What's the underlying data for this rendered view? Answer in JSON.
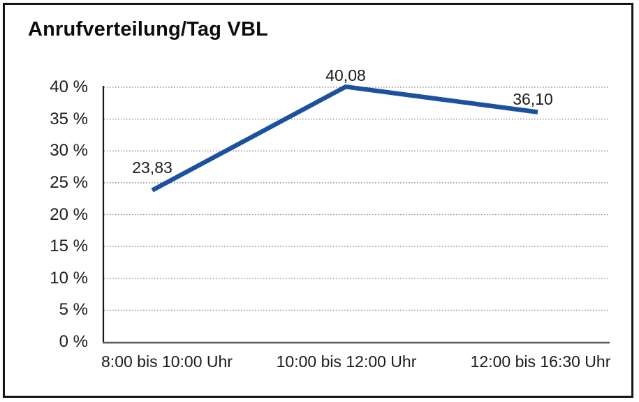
{
  "chart_data": {
    "type": "line",
    "title": "Anrufverteilung/Tag VBL",
    "categories": [
      "8:00 bis 10:00 Uhr",
      "10:00 bis 12:00 Uhr",
      "12:00 bis 16:30 Uhr"
    ],
    "series": [
      {
        "values": [
          23.83,
          40.08,
          36.1
        ]
      }
    ],
    "data_labels": [
      "23,83",
      "40,08",
      "36,10"
    ],
    "y_ticks": [
      {
        "value": 0,
        "label": "0 %"
      },
      {
        "value": 5,
        "label": "5 %"
      },
      {
        "value": 10,
        "label": "10 %"
      },
      {
        "value": 15,
        "label": "15 %"
      },
      {
        "value": 20,
        "label": "20 %"
      },
      {
        "value": 25,
        "label": "25 %"
      },
      {
        "value": 30,
        "label": "30 %"
      },
      {
        "value": 35,
        "label": "35 %"
      },
      {
        "value": 40,
        "label": "40 %"
      }
    ],
    "ylim": [
      0,
      40
    ],
    "xlabel": "",
    "ylabel": "",
    "grid": "horizontal-dotted",
    "legend": "none",
    "colors": {
      "line": "#1b519e",
      "grid": "#7f7f7f",
      "y_axis": "#1a1a1a",
      "baseline": "#5a5a5a",
      "text": "#1a1a1a",
      "frame_border": "#151515",
      "background": "#ffffff"
    }
  }
}
